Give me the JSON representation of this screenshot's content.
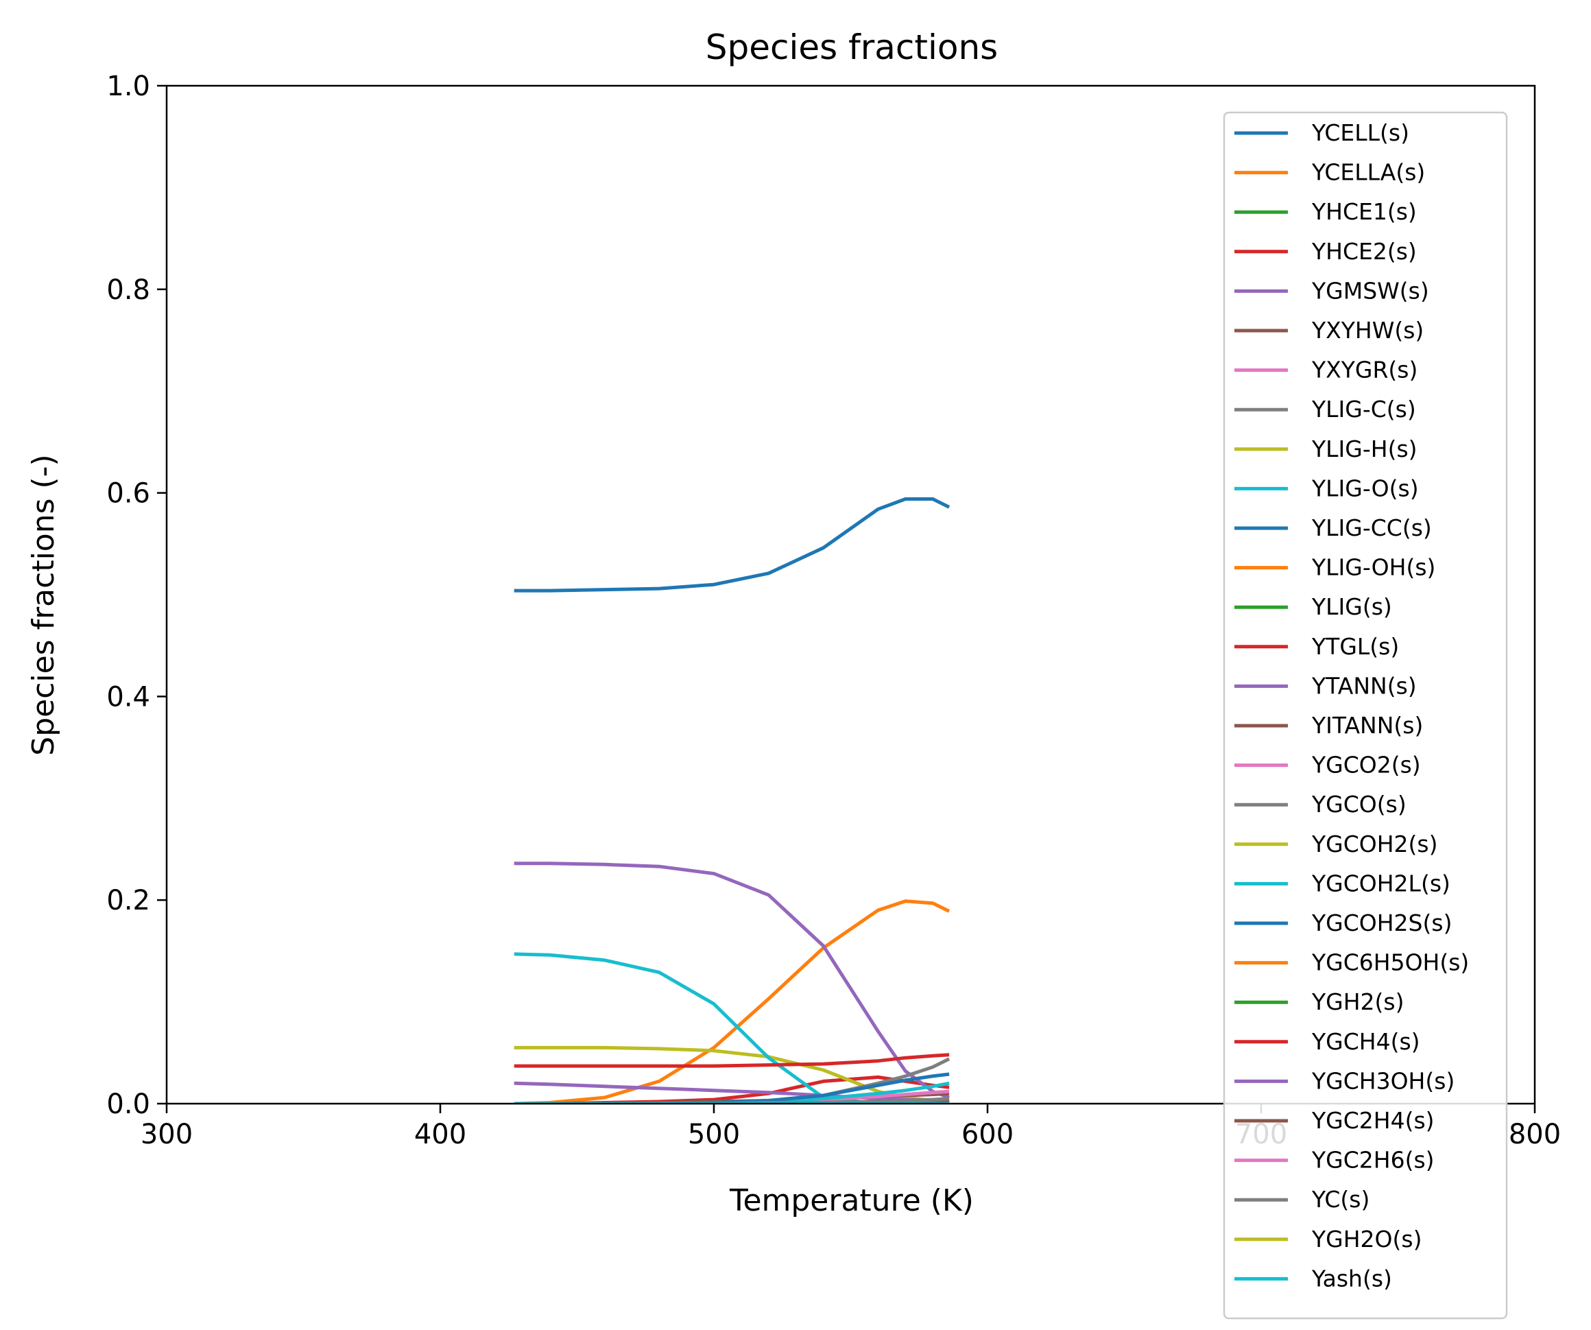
{
  "chart_data": {
    "type": "line",
    "title": "Species fractions",
    "xlabel": "Temperature (K)",
    "ylabel": "Species fractions (-)",
    "xlim": [
      300,
      800
    ],
    "ylim": [
      0,
      1
    ],
    "xticks": [
      "300",
      "400",
      "500",
      "600",
      "700",
      "800"
    ],
    "yticks": [
      "0.0",
      "0.2",
      "0.4",
      "0.6",
      "0.8",
      "1.0"
    ],
    "grid": false,
    "legend_position": "right",
    "x": [
      427,
      440,
      460,
      480,
      500,
      520,
      540,
      560,
      570,
      580,
      586
    ],
    "series": [
      {
        "name": "YCELL(s)",
        "color": "#1f77b4",
        "values": [
          0.504,
          0.504,
          0.505,
          0.506,
          0.51,
          0.521,
          0.546,
          0.584,
          0.594,
          0.594,
          0.586
        ]
      },
      {
        "name": "YCELLA(s)",
        "color": "#ff7f0e",
        "values": [
          0.0,
          0.001,
          0.006,
          0.022,
          0.055,
          0.103,
          0.153,
          0.19,
          0.199,
          0.197,
          0.189
        ]
      },
      {
        "name": "YHCE1(s)",
        "color": "#2ca02c",
        "values": [
          0.0,
          0.0,
          0.0,
          0.0,
          0.0,
          0.0,
          0.0,
          0.0,
          0.0,
          0.0,
          0.0
        ]
      },
      {
        "name": "YHCE2(s)",
        "color": "#d62728",
        "values": [
          0.0,
          0.0,
          0.001,
          0.002,
          0.004,
          0.01,
          0.022,
          0.026,
          0.022,
          0.018,
          0.016
        ]
      },
      {
        "name": "YGMSW(s)",
        "color": "#9467bd",
        "values": [
          0.236,
          0.236,
          0.235,
          0.233,
          0.226,
          0.205,
          0.155,
          0.071,
          0.032,
          0.012,
          0.006
        ]
      },
      {
        "name": "YXYHW(s)",
        "color": "#8c564b",
        "values": [
          0.0,
          0.0,
          0.0,
          0.0,
          0.0,
          0.0,
          0.0,
          0.0,
          0.0,
          0.0,
          0.0
        ]
      },
      {
        "name": "YXYGR(s)",
        "color": "#e377c2",
        "values": [
          0.0,
          0.0,
          0.0,
          0.0,
          0.0,
          0.0,
          0.0,
          0.0,
          0.0,
          0.0,
          0.0
        ]
      },
      {
        "name": "YLIG-C(s)",
        "color": "#7f7f7f",
        "values": [
          0.0,
          0.0,
          0.0,
          0.0,
          0.0,
          0.0,
          0.0,
          0.0,
          0.0,
          0.0,
          0.0
        ]
      },
      {
        "name": "YLIG-H(s)",
        "color": "#bcbd22",
        "values": [
          0.055,
          0.055,
          0.055,
          0.054,
          0.052,
          0.046,
          0.033,
          0.012,
          0.006,
          0.003,
          0.002
        ]
      },
      {
        "name": "YLIG-O(s)",
        "color": "#17becf",
        "values": [
          0.147,
          0.146,
          0.141,
          0.129,
          0.098,
          0.045,
          0.006,
          0.0,
          0.0,
          0.0,
          0.0
        ]
      },
      {
        "name": "YLIG-CC(s)",
        "color": "#1f77b4",
        "values": [
          0.0,
          0.0,
          0.0,
          0.0,
          0.0,
          0.0,
          0.0,
          0.0,
          0.0,
          0.0,
          0.0
        ]
      },
      {
        "name": "YLIG-OH(s)",
        "color": "#ff7f0e",
        "values": [
          0.0,
          0.0,
          0.0,
          0.0,
          0.0,
          0.0,
          0.0,
          0.0,
          0.0,
          0.0,
          0.0
        ]
      },
      {
        "name": "YLIG(s)",
        "color": "#2ca02c",
        "values": [
          0.0,
          0.0,
          0.0,
          0.0,
          0.0,
          0.0,
          0.0,
          0.0,
          0.0,
          0.0,
          0.0
        ]
      },
      {
        "name": "YTGL(s)",
        "color": "#d62728",
        "values": [
          0.037,
          0.037,
          0.037,
          0.037,
          0.037,
          0.038,
          0.039,
          0.042,
          0.045,
          0.047,
          0.048
        ]
      },
      {
        "name": "YTANN(s)",
        "color": "#9467bd",
        "values": [
          0.02,
          0.019,
          0.017,
          0.015,
          0.013,
          0.011,
          0.008,
          0.005,
          0.004,
          0.003,
          0.002
        ]
      },
      {
        "name": "YITANN(s)",
        "color": "#8c564b",
        "values": [
          0.0,
          0.0,
          0.0,
          0.001,
          0.002,
          0.003,
          0.005,
          0.007,
          0.008,
          0.009,
          0.01
        ]
      },
      {
        "name": "YGCO2(s)",
        "color": "#e377c2",
        "values": [
          0.0,
          0.0,
          0.0,
          0.0,
          0.001,
          0.002,
          0.004,
          0.007,
          0.009,
          0.011,
          0.012
        ]
      },
      {
        "name": "YGCO(s)",
        "color": "#7f7f7f",
        "values": [
          0.0,
          0.0,
          0.0,
          0.0,
          0.001,
          0.003,
          0.008,
          0.02,
          0.027,
          0.036,
          0.044
        ]
      },
      {
        "name": "YGCOH2(s)",
        "color": "#bcbd22",
        "values": [
          0.0,
          0.0,
          0.0,
          0.0,
          0.0,
          0.0,
          0.0,
          0.0,
          0.0,
          0.0,
          0.0
        ]
      },
      {
        "name": "YGCOH2L(s)",
        "color": "#17becf",
        "values": [
          0.0,
          0.0,
          0.0,
          0.0,
          0.001,
          0.002,
          0.005,
          0.01,
          0.013,
          0.017,
          0.02
        ]
      },
      {
        "name": "YGCOH2S(s)",
        "color": "#1f77b4",
        "values": [
          0.0,
          0.0,
          0.0,
          0.0,
          0.001,
          0.003,
          0.008,
          0.018,
          0.023,
          0.027,
          0.029
        ]
      },
      {
        "name": "YGC6H5OH(s)",
        "color": "#ff7f0e",
        "values": [
          0.0,
          0.0,
          0.0,
          0.0,
          0.0,
          0.0,
          0.0,
          0.0,
          0.0,
          0.0,
          0.0
        ]
      },
      {
        "name": "YGH2(s)",
        "color": "#2ca02c",
        "values": [
          0.0,
          0.0,
          0.0,
          0.0,
          0.0,
          0.0,
          0.0,
          0.0,
          0.0,
          0.0,
          0.0
        ]
      },
      {
        "name": "YGCH4(s)",
        "color": "#d62728",
        "values": [
          0.0,
          0.0,
          0.0,
          0.0,
          0.0,
          0.0,
          0.0,
          0.001,
          0.001,
          0.001,
          0.001
        ]
      },
      {
        "name": "YGCH3OH(s)",
        "color": "#9467bd",
        "values": [
          0.0,
          0.0,
          0.0,
          0.0,
          0.0,
          0.0,
          0.0,
          0.0,
          0.0,
          0.0,
          0.0
        ]
      },
      {
        "name": "YGC2H4(s)",
        "color": "#8c564b",
        "values": [
          0.0,
          0.0,
          0.0,
          0.0,
          0.0,
          0.0,
          0.001,
          0.002,
          0.003,
          0.003,
          0.004
        ]
      },
      {
        "name": "YGC2H6(s)",
        "color": "#e377c2",
        "values": [
          0.0,
          0.0,
          0.0,
          0.0,
          0.0,
          0.0,
          0.0,
          0.0,
          0.0,
          0.0,
          0.0
        ]
      },
      {
        "name": "YC(s)",
        "color": "#7f7f7f",
        "values": [
          0.0,
          0.0,
          0.0,
          0.0,
          0.0,
          0.001,
          0.001,
          0.002,
          0.003,
          0.004,
          0.005
        ]
      },
      {
        "name": "YGH2O(s)",
        "color": "#bcbd22",
        "values": [
          0.0,
          0.0,
          0.0,
          0.0,
          0.0,
          0.0,
          0.0,
          0.0,
          0.0,
          0.0,
          0.0
        ]
      },
      {
        "name": "Yash(s)",
        "color": "#17becf",
        "values": [
          0.0,
          0.0,
          0.0,
          0.0,
          0.0,
          0.0,
          0.0,
          0.0,
          0.0,
          0.0,
          0.0
        ]
      }
    ]
  }
}
